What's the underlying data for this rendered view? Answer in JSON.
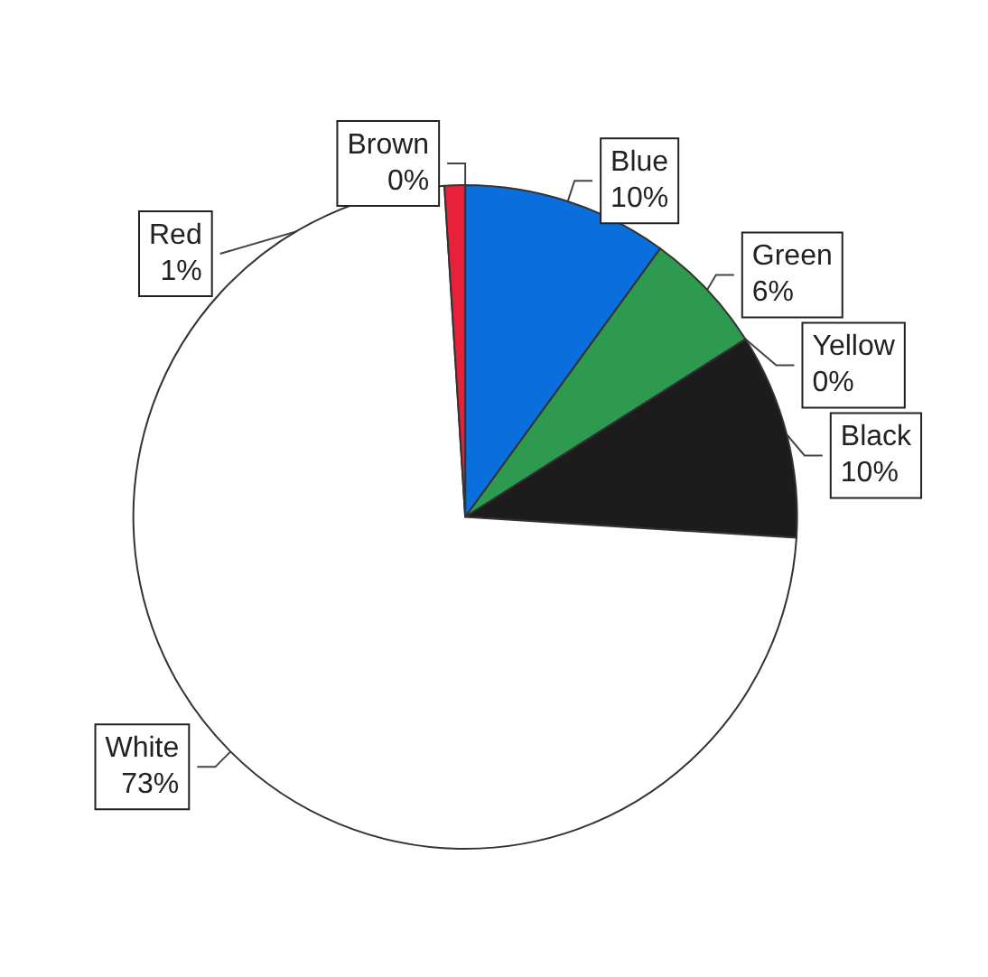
{
  "chart_data": {
    "type": "pie",
    "categories": [
      "Brown",
      "Blue",
      "Green",
      "Yellow",
      "Black",
      "White",
      "Red"
    ],
    "values": [
      0,
      10,
      6,
      0,
      10,
      73,
      1
    ],
    "value_labels": [
      "0%",
      "10%",
      "6%",
      "0%",
      "10%",
      "73%",
      "1%"
    ],
    "colors": [
      "#8b4513",
      "#0a6fdc",
      "#2e9a50",
      "#ffff00",
      "#1c1c1c",
      "#ffffff",
      "#e8203a"
    ]
  }
}
